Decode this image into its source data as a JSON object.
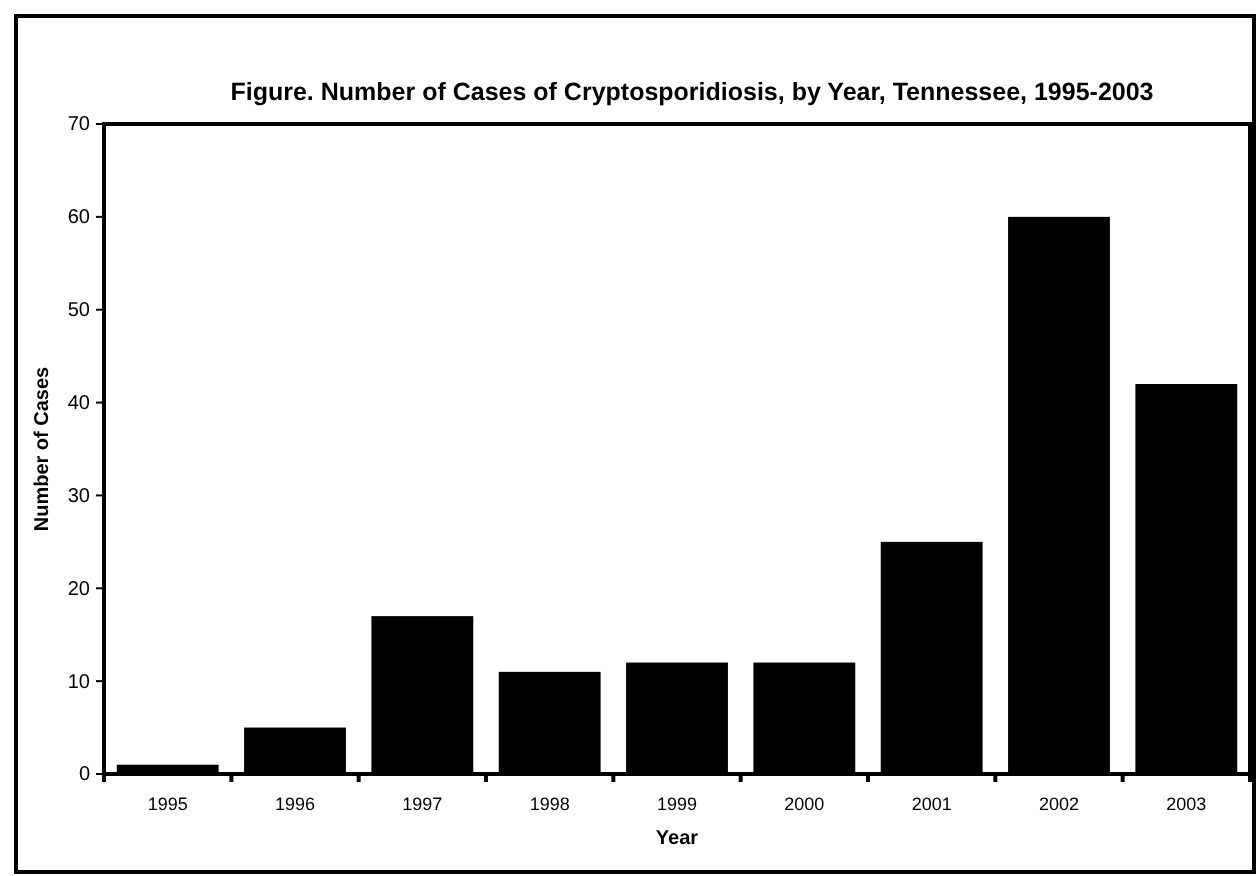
{
  "chart_data": {
    "type": "bar",
    "title": "Figure. Number of Cases of Cryptosporidiosis, by Year, Tennessee, 1995-2003",
    "xlabel": "Year",
    "ylabel": "Number of Cases",
    "categories": [
      "1995",
      "1996",
      "1997",
      "1998",
      "1999",
      "2000",
      "2001",
      "2002",
      "2003"
    ],
    "values": [
      1,
      5,
      17,
      11,
      12,
      12,
      25,
      60,
      42
    ],
    "color": "#000000",
    "ylim": [
      0,
      70
    ],
    "yticks": [
      0,
      10,
      20,
      30,
      40,
      50,
      60,
      70
    ],
    "grid": false
  }
}
